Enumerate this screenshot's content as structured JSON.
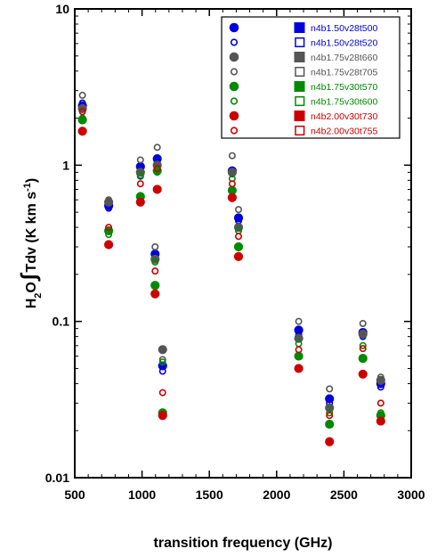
{
  "chart_data": {
    "type": "scatter",
    "xlabel": "transition frequency (GHz)",
    "ylabel": {
      "main": "H",
      "sub": "2",
      "mid": "O",
      "integral": "∫",
      "rest": "Tdv (K km s",
      "sup": "-1",
      "close": ")"
    },
    "xlim": [
      500,
      3000
    ],
    "ylim": [
      0.01,
      10
    ],
    "yscale": "log",
    "xticks": [
      "500",
      "1000",
      "1500",
      "2000",
      "2500",
      "3000"
    ],
    "yticks": [
      "0.01",
      "0.1",
      "1",
      "10"
    ],
    "legend_position": "top-right",
    "series": [
      {
        "name": "n4b1.50v28t500",
        "color": "#0000dd",
        "marker": "circle",
        "fill": true,
        "points": [
          [
            557,
            2.4
          ],
          [
            752,
            0.55
          ],
          [
            988,
            0.98
          ],
          [
            1097,
            0.27
          ],
          [
            1113,
            1.1
          ],
          [
            1153,
            0.052
          ],
          [
            1670,
            0.92
          ],
          [
            1717,
            0.46
          ],
          [
            2164,
            0.088
          ],
          [
            2393,
            0.032
          ],
          [
            2641,
            0.085
          ],
          [
            2774,
            0.04
          ]
        ]
      },
      {
        "name": "n4b1.50v28t520",
        "color": "#0000dd",
        "marker": "circle",
        "fill": false,
        "points": [
          [
            557,
            2.5
          ],
          [
            752,
            0.53
          ],
          [
            988,
            0.85
          ],
          [
            1097,
            0.26
          ],
          [
            1113,
            1.05
          ],
          [
            1153,
            0.048
          ],
          [
            1670,
            0.88
          ],
          [
            1717,
            0.44
          ],
          [
            2164,
            0.082
          ],
          [
            2393,
            0.03
          ],
          [
            2641,
            0.08
          ],
          [
            2774,
            0.038
          ]
        ]
      },
      {
        "name": "n4b1.75v28t660",
        "color": "#555555",
        "marker": "circle",
        "fill": true,
        "points": [
          [
            557,
            2.3
          ],
          [
            752,
            0.58
          ],
          [
            988,
            0.9
          ],
          [
            1097,
            0.25
          ],
          [
            1113,
            1.0
          ],
          [
            1153,
            0.066
          ],
          [
            1670,
            0.9
          ],
          [
            1717,
            0.4
          ],
          [
            2164,
            0.078
          ],
          [
            2393,
            0.028
          ],
          [
            2641,
            0.083
          ],
          [
            2774,
            0.042
          ]
        ]
      },
      {
        "name": "n4b1.75v28t705",
        "color": "#555555",
        "marker": "circle",
        "fill": false,
        "points": [
          [
            557,
            2.8
          ],
          [
            752,
            0.6
          ],
          [
            988,
            1.08
          ],
          [
            1097,
            0.3
          ],
          [
            1113,
            1.3
          ],
          [
            1153,
            0.057
          ],
          [
            1670,
            1.15
          ],
          [
            1717,
            0.52
          ],
          [
            2164,
            0.1
          ],
          [
            2393,
            0.037
          ],
          [
            2641,
            0.097
          ],
          [
            2774,
            0.044
          ]
        ]
      },
      {
        "name": "n4b1.75v30t570",
        "color": "#008a00",
        "marker": "circle",
        "fill": true,
        "points": [
          [
            557,
            1.95
          ],
          [
            752,
            0.38
          ],
          [
            988,
            0.63
          ],
          [
            1097,
            0.17
          ],
          [
            1113,
            0.92
          ],
          [
            1153,
            0.026
          ],
          [
            1670,
            0.69
          ],
          [
            1717,
            0.3
          ],
          [
            2164,
            0.06
          ],
          [
            2393,
            0.022
          ],
          [
            2641,
            0.058
          ],
          [
            2774,
            0.025
          ]
        ]
      },
      {
        "name": "n4b1.75v30t600",
        "color": "#008a00",
        "marker": "circle",
        "fill": false,
        "points": [
          [
            557,
            2.0
          ],
          [
            752,
            0.36
          ],
          [
            988,
            0.86
          ],
          [
            1097,
            0.24
          ],
          [
            1113,
            0.9
          ],
          [
            1153,
            0.055
          ],
          [
            1670,
            0.82
          ],
          [
            1717,
            0.38
          ],
          [
            2164,
            0.072
          ],
          [
            2393,
            0.026
          ],
          [
            2641,
            0.07
          ],
          [
            2774,
            0.026
          ]
        ]
      },
      {
        "name": "n4b2.00v30t730",
        "color": "#cc0000",
        "marker": "circle",
        "fill": true,
        "points": [
          [
            557,
            1.65
          ],
          [
            752,
            0.31
          ],
          [
            988,
            0.58
          ],
          [
            1097,
            0.15
          ],
          [
            1113,
            0.7
          ],
          [
            1153,
            0.025
          ],
          [
            1670,
            0.62
          ],
          [
            1717,
            0.26
          ],
          [
            2164,
            0.05
          ],
          [
            2393,
            0.017
          ],
          [
            2641,
            0.046
          ],
          [
            2774,
            0.023
          ]
        ]
      },
      {
        "name": "n4b2.00v30t755",
        "color": "#cc0000",
        "marker": "circle",
        "fill": false,
        "points": [
          [
            557,
            2.2
          ],
          [
            752,
            0.4
          ],
          [
            988,
            0.76
          ],
          [
            1097,
            0.21
          ],
          [
            1113,
            0.95
          ],
          [
            1153,
            0.035
          ],
          [
            1670,
            0.76
          ],
          [
            1717,
            0.35
          ],
          [
            2164,
            0.066
          ],
          [
            2393,
            0.025
          ],
          [
            2641,
            0.067
          ],
          [
            2774,
            0.03
          ]
        ]
      }
    ],
    "legend_entries": [
      {
        "label": "n4b1.50v28t500",
        "color": "#0000dd",
        "marker": "circle",
        "fill": true
      },
      {
        "label": "n4b1.50v28t520",
        "color": "#0000dd",
        "marker": "circle",
        "fill": false
      },
      {
        "label": "n4b1.75v28t660",
        "color": "#555555",
        "marker": "circle",
        "fill": true
      },
      {
        "label": "n4b1.75v28t705",
        "color": "#555555",
        "marker": "circle",
        "fill": false
      },
      {
        "label": "n4b1.75v30t570",
        "color": "#008a00",
        "marker": "circle",
        "fill": true
      },
      {
        "label": "n4b1.75v30t600",
        "color": "#008a00",
        "marker": "circle",
        "fill": false
      },
      {
        "label": "n4b2.00v30t730",
        "color": "#cc0000",
        "marker": "circle",
        "fill": true
      },
      {
        "label": "n4b2.00v30t755",
        "color": "#cc0000",
        "marker": "circle",
        "fill": false
      }
    ]
  }
}
